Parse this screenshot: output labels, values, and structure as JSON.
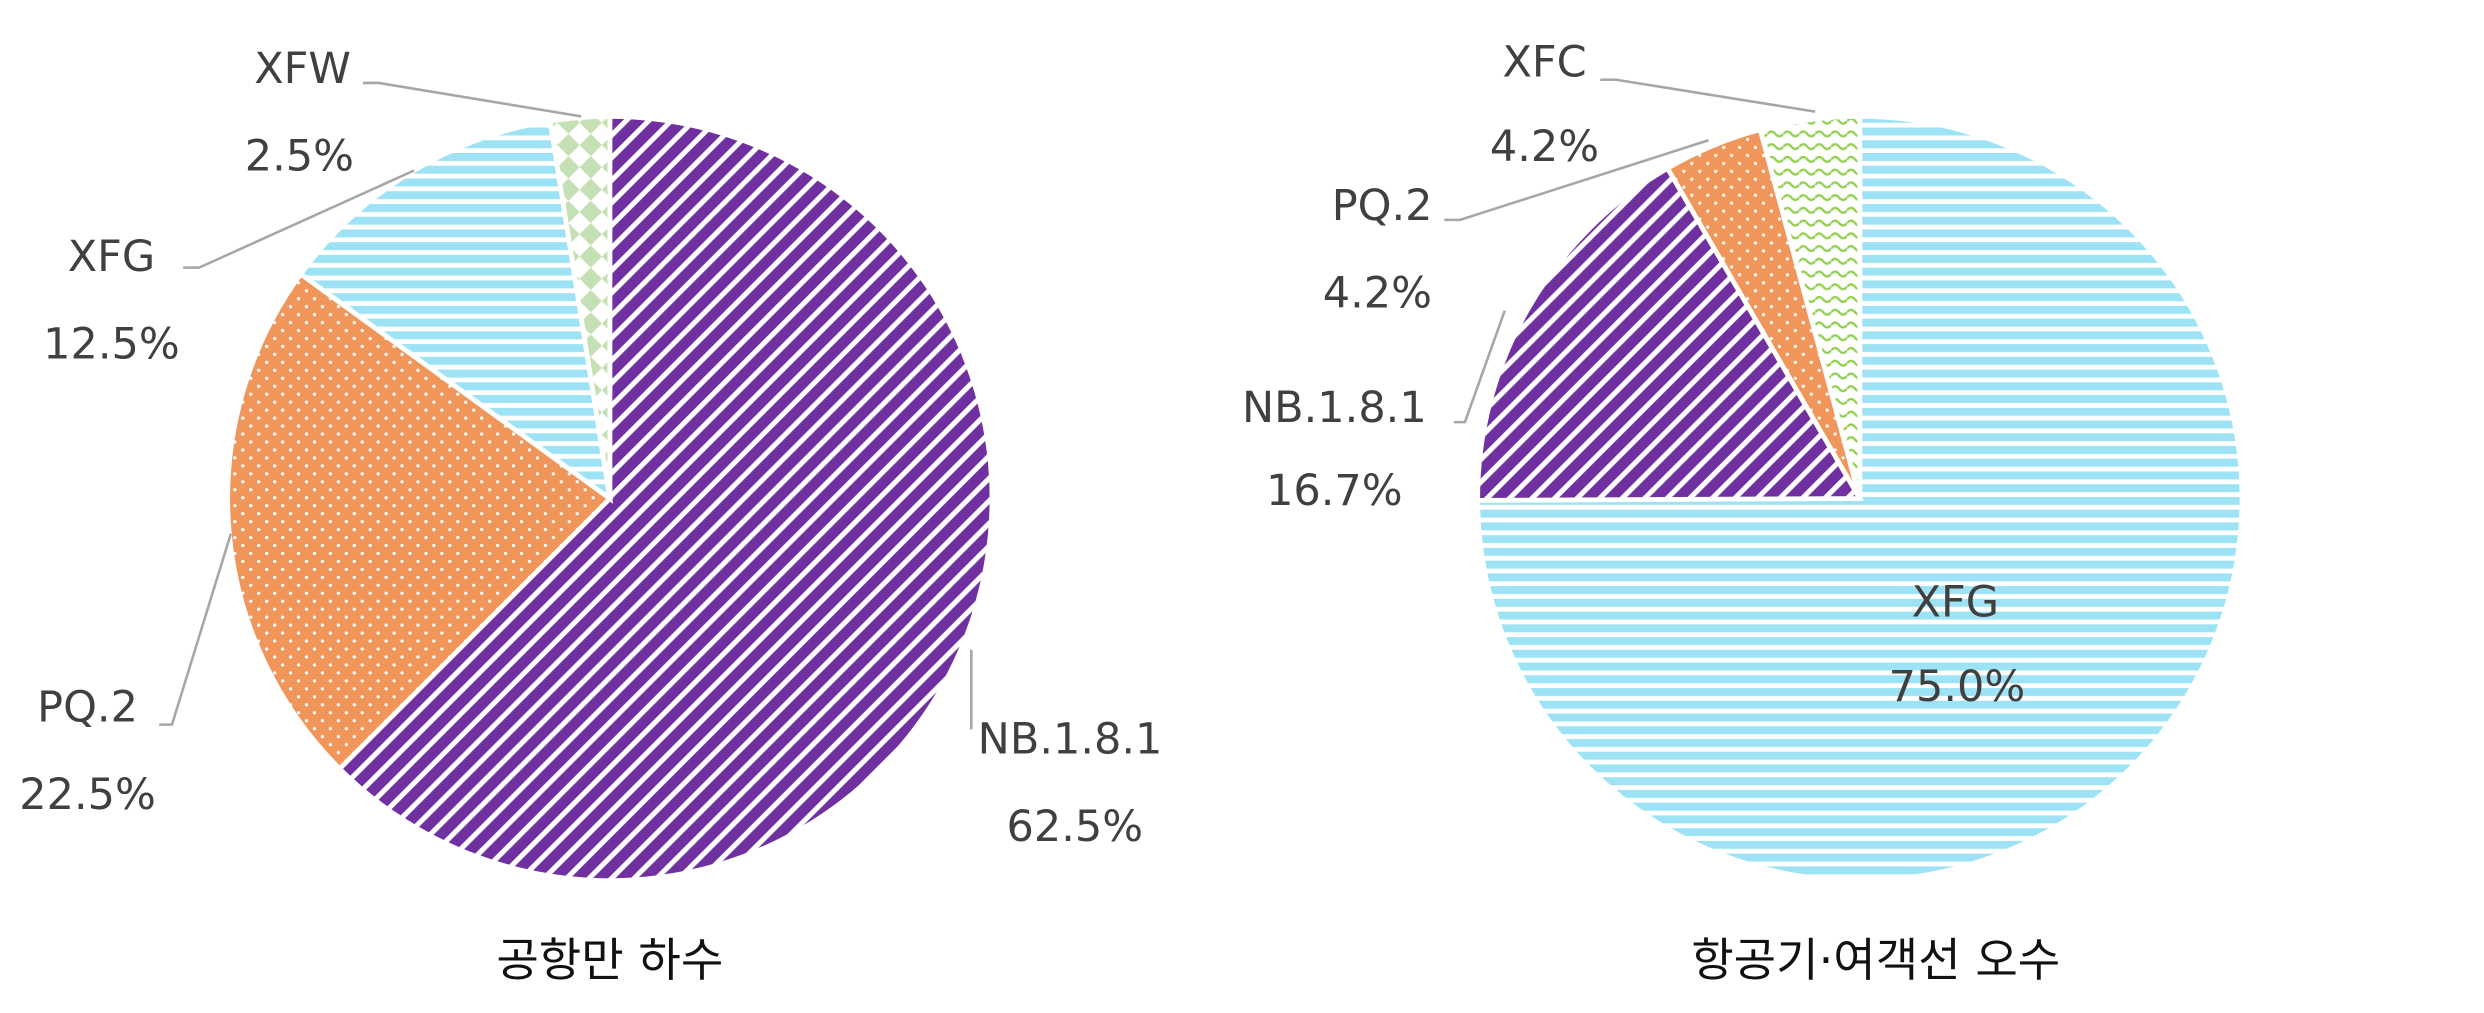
{
  "chart_data": [
    {
      "type": "pie",
      "title": "공항만 하수",
      "start": "top",
      "direction": "clockwise",
      "slices": [
        {
          "name": "NB.1.8.1",
          "value": 62.5,
          "label": "62.5%",
          "color": "#7030A0",
          "pattern": "diagonal-stripes"
        },
        {
          "name": "PQ.2",
          "value": 22.5,
          "label": "22.5%",
          "color": "#F0965A",
          "pattern": "dots"
        },
        {
          "name": "XFG",
          "value": 12.5,
          "label": "12.5%",
          "color": "#9DE3F5",
          "pattern": "horizontal-stripes"
        },
        {
          "name": "XFW",
          "value": 2.5,
          "label": "2.5%",
          "color": "#C5E0B4",
          "pattern": "diamonds"
        }
      ]
    },
    {
      "type": "pie",
      "title": "항공기·여객선 오수",
      "start": "top",
      "direction": "clockwise",
      "slices": [
        {
          "name": "XFG",
          "value": 75.0,
          "label": "75.0%",
          "color": "#9DE3F5",
          "pattern": "horizontal-stripes"
        },
        {
          "name": "NB.1.8.1",
          "value": 16.7,
          "label": "16.7%",
          "color": "#7030A0",
          "pattern": "diagonal-stripes"
        },
        {
          "name": "PQ.2",
          "value": 4.2,
          "label": "4.2%",
          "color": "#F0965A",
          "pattern": "dots"
        },
        {
          "name": "XFC",
          "value": 4.2,
          "label": "4.2%",
          "color": "#92D050",
          "pattern": "waves"
        }
      ]
    }
  ]
}
